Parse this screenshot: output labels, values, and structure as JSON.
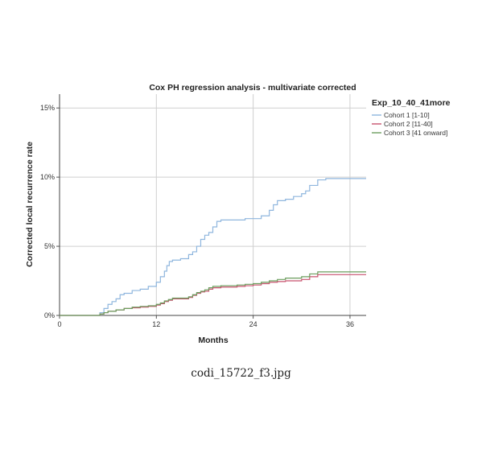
{
  "caption": "codi_15722_f3.jpg",
  "chart_data": {
    "type": "line",
    "subtype": "step",
    "title": "Cox PH regression analysis - multivariate corrected",
    "xlabel": "Months",
    "ylabel": "Corrected local recurrence rate",
    "xlim": [
      0,
      38
    ],
    "ylim": [
      0,
      16
    ],
    "xticks": [
      0,
      12,
      24,
      36
    ],
    "yticks": [
      0,
      5,
      10,
      15
    ],
    "ytick_labels": [
      "0%",
      "5%",
      "10%",
      "15%"
    ],
    "grid": true,
    "legend": {
      "title": "Exp_10_40_41more",
      "position": "right"
    },
    "series": [
      {
        "name": "Cohort 1 [1-10]",
        "color": "#8fb6de",
        "x": [
          0,
          5,
          5.5,
          6,
          6.5,
          7,
          7.5,
          8,
          9,
          10,
          11,
          12,
          12.5,
          13,
          13.3,
          13.6,
          14,
          15,
          16,
          16.5,
          17,
          17.5,
          18,
          18.5,
          19,
          19.5,
          20,
          22,
          23,
          24,
          25,
          26,
          26.5,
          27,
          28,
          29,
          30,
          30.5,
          31,
          32,
          33,
          38
        ],
        "y": [
          0,
          0.2,
          0.5,
          0.8,
          1.0,
          1.2,
          1.5,
          1.6,
          1.8,
          1.9,
          2.1,
          2.4,
          2.8,
          3.2,
          3.6,
          3.9,
          4.0,
          4.1,
          4.4,
          4.6,
          5.0,
          5.5,
          5.8,
          6.0,
          6.4,
          6.8,
          6.9,
          6.9,
          7.0,
          7.0,
          7.2,
          7.6,
          8.0,
          8.3,
          8.4,
          8.6,
          8.8,
          9.0,
          9.4,
          9.8,
          9.9,
          9.9
        ]
      },
      {
        "name": "Cohort 2 [11-40]",
        "color": "#c8516e",
        "x": [
          0,
          5,
          5.5,
          6,
          7,
          8,
          9,
          10,
          11,
          12,
          12.5,
          13,
          13.5,
          14,
          16,
          16.5,
          17,
          17.5,
          18,
          18.5,
          19,
          20,
          22,
          23,
          24,
          25,
          26,
          27,
          28,
          30,
          31,
          32,
          38
        ],
        "y": [
          0,
          0.1,
          0.2,
          0.3,
          0.4,
          0.5,
          0.55,
          0.6,
          0.65,
          0.75,
          0.85,
          1.0,
          1.1,
          1.2,
          1.3,
          1.45,
          1.6,
          1.7,
          1.75,
          1.9,
          2.0,
          2.05,
          2.1,
          2.15,
          2.2,
          2.3,
          2.4,
          2.45,
          2.5,
          2.6,
          2.8,
          2.95,
          2.95
        ]
      },
      {
        "name": "Cohort 3 [41 onward]",
        "color": "#6b9e5e",
        "x": [
          0,
          5,
          5.5,
          6,
          7,
          8,
          9,
          10,
          11,
          12,
          12.5,
          13,
          13.5,
          14,
          16,
          16.5,
          17,
          17.5,
          18,
          18.5,
          19,
          20,
          22,
          23,
          24,
          25,
          26,
          27,
          28,
          30,
          31,
          32,
          38
        ],
        "y": [
          0,
          0.1,
          0.2,
          0.3,
          0.4,
          0.5,
          0.6,
          0.65,
          0.7,
          0.8,
          0.9,
          1.05,
          1.15,
          1.25,
          1.35,
          1.5,
          1.65,
          1.75,
          1.85,
          2.0,
          2.1,
          2.15,
          2.2,
          2.25,
          2.3,
          2.4,
          2.5,
          2.6,
          2.7,
          2.8,
          3.0,
          3.15,
          3.15
        ]
      }
    ]
  }
}
